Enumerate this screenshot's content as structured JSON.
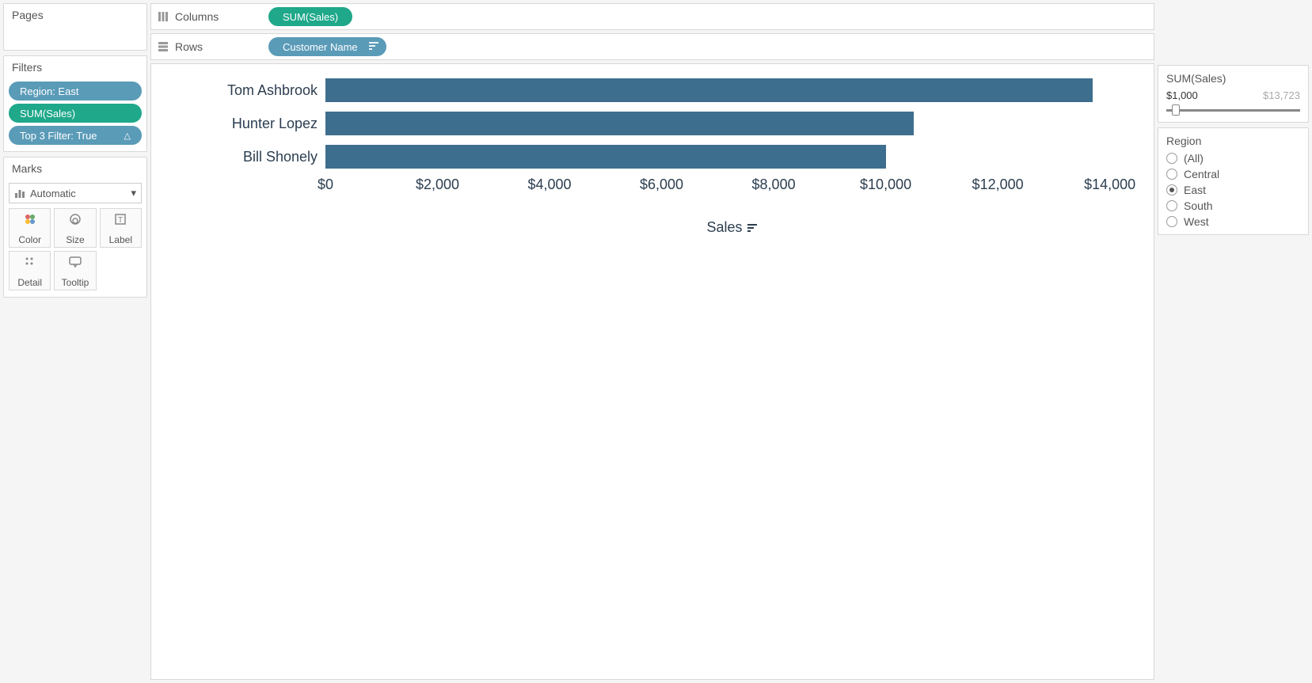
{
  "shelves": {
    "pages_label": "Pages",
    "columns_label": "Columns",
    "rows_label": "Rows",
    "columns_pill": "SUM(Sales)",
    "rows_pill": "Customer Name"
  },
  "filters": {
    "label": "Filters",
    "items": [
      {
        "text": "Region: East",
        "color": "blue",
        "suffix": ""
      },
      {
        "text": "SUM(Sales)",
        "color": "green",
        "suffix": ""
      },
      {
        "text": "Top 3 Filter: True",
        "color": "blue",
        "suffix": "△"
      }
    ]
  },
  "marks": {
    "label": "Marks",
    "select_value": "Automatic",
    "cards": [
      {
        "name": "Color"
      },
      {
        "name": "Size"
      },
      {
        "name": "Label"
      },
      {
        "name": "Detail"
      },
      {
        "name": "Tooltip"
      }
    ]
  },
  "chart": {
    "type": "bar",
    "bar_color": "#3e6e8e",
    "axis_text_color": "#2c3e50",
    "x_title": "Sales",
    "x_max": 14500,
    "x_ticks": [
      {
        "value": 0,
        "label": "$0"
      },
      {
        "value": 2000,
        "label": "$2,000"
      },
      {
        "value": 4000,
        "label": "$4,000"
      },
      {
        "value": 6000,
        "label": "$6,000"
      },
      {
        "value": 8000,
        "label": "$8,000"
      },
      {
        "value": 10000,
        "label": "$10,000"
      },
      {
        "value": 12000,
        "label": "$12,000"
      },
      {
        "value": 14000,
        "label": "$14,000"
      }
    ],
    "rows": [
      {
        "label": "Tom Ashbrook",
        "value": 13700
      },
      {
        "label": "Hunter Lopez",
        "value": 10500
      },
      {
        "label": "Bill Shonely",
        "value": 10000
      }
    ]
  },
  "right": {
    "sum_sales": {
      "title": "SUM(Sales)",
      "min_label": "$1,000",
      "max_label": "$13,723",
      "thumb_pct": 4
    },
    "region": {
      "title": "Region",
      "options": [
        {
          "label": "(All)",
          "selected": false
        },
        {
          "label": "Central",
          "selected": false
        },
        {
          "label": "East",
          "selected": true
        },
        {
          "label": "South",
          "selected": false
        },
        {
          "label": "West",
          "selected": false
        }
      ]
    }
  }
}
